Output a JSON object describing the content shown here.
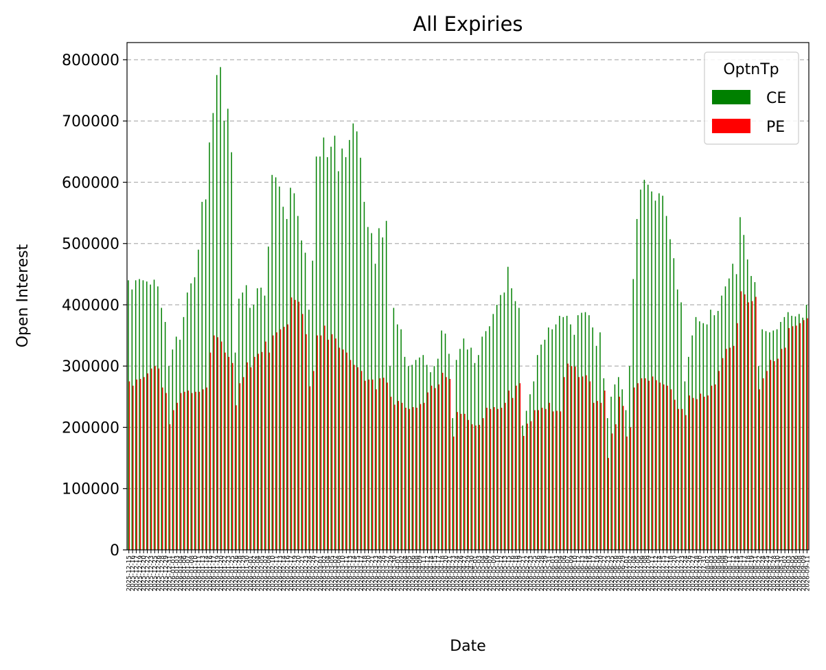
{
  "chart_data": {
    "type": "bar",
    "title": "All Expiries",
    "xlabel": "Date",
    "ylabel": "Open Interest",
    "ylim": [
      0,
      828000
    ],
    "yticks": [
      0,
      100000,
      200000,
      300000,
      400000,
      500000,
      600000,
      700000,
      800000
    ],
    "ytick_labels": [
      "0",
      "100000",
      "200000",
      "300000",
      "400000",
      "500000",
      "600000",
      "700000",
      "800000"
    ],
    "grid": "horizontal dashed",
    "legend": {
      "title": "OptnTp",
      "position": "top-right",
      "entries": [
        "CE",
        "PE"
      ]
    },
    "colors": {
      "CE": "#008000",
      "PE": "#ff0000"
    },
    "x_first_label": "2025-12-15",
    "x_last_label": "2026-09-11",
    "x_tick_every_n_bars": 1,
    "series": [
      {
        "name": "CE",
        "values": [
          440000,
          425000,
          440000,
          442000,
          440000,
          438000,
          433000,
          441000,
          430000,
          395000,
          372000,
          300000,
          327000,
          348000,
          343000,
          380000,
          420000,
          435000,
          445000,
          490000,
          568000,
          572000,
          665000,
          713000,
          775000,
          788000,
          700000,
          720000,
          649000,
          322000,
          410000,
          420000,
          432000,
          395000,
          400000,
          427000,
          428000,
          415000,
          495000,
          612000,
          608000,
          593000,
          560000,
          540000,
          591000,
          582000,
          545000,
          505000,
          485000,
          392000,
          472000,
          642000,
          642000,
          673000,
          641000,
          658000,
          676000,
          618000,
          655000,
          641000,
          669000,
          696000,
          683000,
          640000,
          568000,
          527000,
          517000,
          467000,
          525000,
          510000,
          537000,
          300000,
          395000,
          368000,
          360000,
          315000,
          300000,
          302000,
          310000,
          314000,
          318000,
          302000,
          290000,
          300000,
          312000,
          358000,
          353000,
          320000,
          215000,
          310000,
          328000,
          345000,
          327000,
          330000,
          305000,
          318000,
          348000,
          357000,
          365000,
          385000,
          400000,
          416000,
          420000,
          462000,
          427000,
          406000,
          395000,
          203000,
          227000,
          254000,
          275000,
          318000,
          335000,
          343000,
          363000,
          360000,
          368000,
          382000,
          380000,
          382000,
          368000,
          351000,
          383000,
          387000,
          388000,
          383000,
          363000,
          333000,
          355000,
          280000,
          215000,
          250000,
          270000,
          282000,
          262000,
          228000,
          300000,
          442000,
          540000,
          588000,
          604000,
          596000,
          585000,
          570000,
          582000,
          578000,
          545000,
          507000,
          476000,
          425000,
          404000,
          275000,
          315000,
          350000,
          380000,
          373000,
          370000,
          368000,
          392000,
          383000,
          390000,
          415000,
          430000,
          443000,
          467000,
          450000,
          543000,
          514000,
          474000,
          447000,
          437000,
          300000,
          360000,
          357000,
          355000,
          358000,
          360000,
          372000,
          380000,
          388000,
          382000,
          381000,
          385000,
          379000,
          400000
        ]
      },
      {
        "name": "PE",
        "values": [
          275000,
          268000,
          278000,
          279000,
          282000,
          288000,
          296000,
          300000,
          296000,
          265000,
          256000,
          205000,
          228000,
          240000,
          256000,
          258000,
          260000,
          256000,
          258000,
          258000,
          262000,
          265000,
          322000,
          350000,
          347000,
          340000,
          322000,
          315000,
          305000,
          236000,
          272000,
          282000,
          306000,
          298000,
          315000,
          320000,
          323000,
          340000,
          322000,
          350000,
          355000,
          360000,
          364000,
          368000,
          412000,
          408000,
          405000,
          385000,
          352000,
          267000,
          292000,
          350000,
          350000,
          366000,
          343000,
          352000,
          345000,
          330000,
          327000,
          322000,
          310000,
          302000,
          298000,
          292000,
          276000,
          278000,
          278000,
          262000,
          280000,
          281000,
          273000,
          250000,
          237000,
          243000,
          240000,
          232000,
          230000,
          233000,
          232000,
          238000,
          240000,
          257000,
          268000,
          264000,
          270000,
          289000,
          282000,
          279000,
          185000,
          225000,
          222000,
          222000,
          212000,
          205000,
          203000,
          204000,
          215000,
          232000,
          230000,
          233000,
          230000,
          232000,
          240000,
          260000,
          248000,
          268000,
          272000,
          186000,
          206000,
          210000,
          228000,
          228000,
          232000,
          230000,
          240000,
          226000,
          227000,
          226000,
          282000,
          304000,
          300000,
          299000,
          282000,
          283000,
          285000,
          275000,
          240000,
          243000,
          240000,
          260000,
          150000,
          190000,
          205000,
          250000,
          235000,
          185000,
          200000,
          265000,
          272000,
          280000,
          280000,
          276000,
          283000,
          277000,
          273000,
          270000,
          268000,
          262000,
          245000,
          230000,
          230000,
          220000,
          252000,
          248000,
          246000,
          255000,
          250000,
          252000,
          268000,
          270000,
          292000,
          313000,
          328000,
          330000,
          333000,
          370000,
          422000,
          417000,
          404000,
          406000,
          413000,
          262000,
          280000,
          292000,
          310000,
          308000,
          312000,
          328000,
          330000,
          362000,
          365000,
          366000,
          370000,
          375000,
          378000
        ]
      }
    ]
  }
}
